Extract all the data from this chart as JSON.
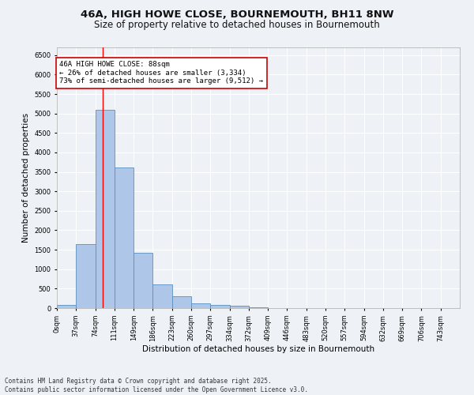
{
  "title": "46A, HIGH HOWE CLOSE, BOURNEMOUTH, BH11 8NW",
  "subtitle": "Size of property relative to detached houses in Bournemouth",
  "xlabel": "Distribution of detached houses by size in Bournemouth",
  "ylabel": "Number of detached properties",
  "bin_labels": [
    "0sqm",
    "37sqm",
    "74sqm",
    "111sqm",
    "149sqm",
    "186sqm",
    "223sqm",
    "260sqm",
    "297sqm",
    "334sqm",
    "372sqm",
    "409sqm",
    "446sqm",
    "483sqm",
    "520sqm",
    "557sqm",
    "594sqm",
    "632sqm",
    "669sqm",
    "706sqm",
    "743sqm"
  ],
  "bar_values": [
    75,
    1650,
    5100,
    3620,
    1420,
    610,
    300,
    130,
    90,
    55,
    30,
    0,
    0,
    0,
    0,
    0,
    0,
    0,
    0,
    0,
    0
  ],
  "bar_color": "#aec6e8",
  "bar_edge_color": "#5a8fc0",
  "property_line_x": 88,
  "property_line_color": "#ff0000",
  "annotation_text": "46A HIGH HOWE CLOSE: 88sqm\n← 26% of detached houses are smaller (3,334)\n73% of semi-detached houses are larger (9,512) →",
  "annotation_box_color": "#ffffff",
  "annotation_box_edge": "#cc0000",
  "ylim": [
    0,
    6700
  ],
  "yticks": [
    0,
    500,
    1000,
    1500,
    2000,
    2500,
    3000,
    3500,
    4000,
    4500,
    5000,
    5500,
    6000,
    6500
  ],
  "background_color": "#eef2f7",
  "grid_color": "#ffffff",
  "footer_text": "Contains HM Land Registry data © Crown copyright and database right 2025.\nContains public sector information licensed under the Open Government Licence v3.0.",
  "title_fontsize": 9.5,
  "subtitle_fontsize": 8.5,
  "label_fontsize": 7.5,
  "tick_fontsize": 6,
  "annotation_fontsize": 6.5,
  "footer_fontsize": 5.5,
  "bin_width": 37
}
